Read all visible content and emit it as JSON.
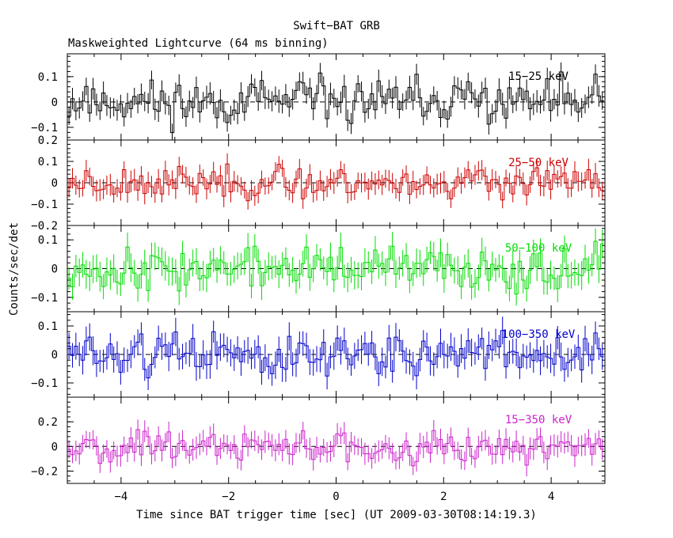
{
  "chart_data": {
    "type": "line",
    "title": "Swift−BAT GRB",
    "subtitle": "Maskweighted Lightcurve (64 ms binning)",
    "xlabel": "Time since BAT trigger time [sec] (UT 2009-03-30T08:14:19.3)",
    "ylabel": "Counts/sec/det",
    "xlim": [
      -5,
      5
    ],
    "x_ticks": [
      -4,
      -2,
      0,
      2,
      4
    ],
    "x_tick_labels": [
      "−4",
      "−2",
      "0",
      "2",
      "4"
    ],
    "bin_width_sec": 0.064,
    "panels": [
      {
        "name": "15−25 keV",
        "color": "#000000",
        "ylim": [
          -0.15,
          0.19
        ],
        "ticks": [
          0.1,
          0,
          -0.1
        ],
        "tick_labels": [
          "0.1",
          "0",
          "−0.1"
        ],
        "amp": 0.055,
        "err": 0.04,
        "seed": 11
      },
      {
        "name": "25−50 keV",
        "color": "#cc0000",
        "ylim": [
          -0.2,
          0.2
        ],
        "ticks": [
          0.2,
          0.1,
          0,
          -0.1,
          -0.2
        ],
        "tick_labels": [
          "0.2",
          "0.1",
          "0",
          "−0.1",
          "−0.2"
        ],
        "amp": 0.045,
        "err": 0.045,
        "seed": 23
      },
      {
        "name": "50−100 keV",
        "color": "#00dd00",
        "ylim": [
          -0.15,
          0.15
        ],
        "ticks": [
          0.1,
          0,
          -0.1
        ],
        "tick_labels": [
          "0.1",
          "0",
          "−0.1"
        ],
        "amp": 0.045,
        "err": 0.045,
        "seed": 37
      },
      {
        "name": "100−350 keV",
        "color": "#0000cc",
        "ylim": [
          -0.15,
          0.15
        ],
        "ticks": [
          0.1,
          0,
          -0.1
        ],
        "tick_labels": [
          "0.1",
          "0",
          "−0.1"
        ],
        "amp": 0.045,
        "err": 0.045,
        "seed": 51
      },
      {
        "name": "15−350 keV",
        "color": "#cc22cc",
        "ylim": [
          -0.3,
          0.4
        ],
        "ticks": [
          0.2,
          0,
          -0.2
        ],
        "tick_labels": [
          "0.2",
          "0",
          "−0.2"
        ],
        "amp": 0.08,
        "err": 0.08,
        "seed": 67
      }
    ]
  }
}
